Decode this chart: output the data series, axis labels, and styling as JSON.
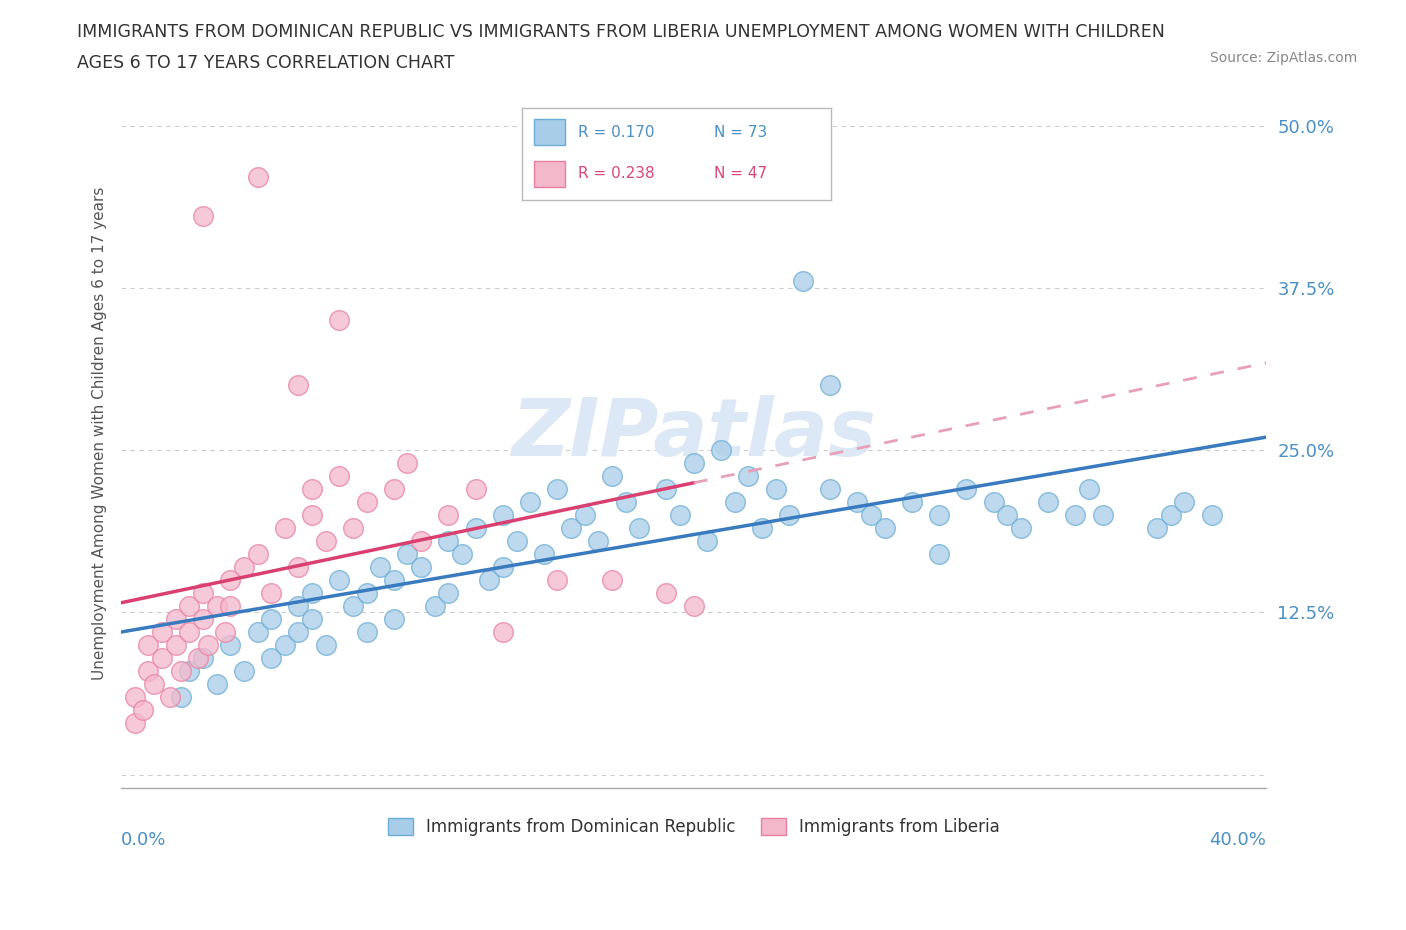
{
  "title_line1": "IMMIGRANTS FROM DOMINICAN REPUBLIC VS IMMIGRANTS FROM LIBERIA UNEMPLOYMENT AMONG WOMEN WITH CHILDREN",
  "title_line2": "AGES 6 TO 17 YEARS CORRELATION CHART",
  "source": "Source: ZipAtlas.com",
  "ylabel": "Unemployment Among Women with Children Ages 6 to 17 years",
  "xlim": [
    0.0,
    0.42
  ],
  "ylim": [
    -0.01,
    0.535
  ],
  "ytick_vals": [
    0.0,
    0.125,
    0.25,
    0.375,
    0.5
  ],
  "ytick_labels": [
    "",
    "12.5%",
    "25.0%",
    "37.5%",
    "50.0%"
  ],
  "color_blue": "#a8cde8",
  "color_pink": "#f4b8cb",
  "color_blue_edge": "#6aadd5",
  "color_pink_edge": "#e87fa0",
  "color_blue_text": "#4a90c4",
  "color_pink_text": "#d9477a",
  "color_trendline_blue": "#3a7abf",
  "color_trendline_pink": "#d94070",
  "color_trendline_pink_dash": "#e8a0b8",
  "watermark_color": "#dce8f5",
  "background_color": "#ffffff",
  "grid_color": "#cccccc",
  "blue_x": [
    0.022,
    0.025,
    0.03,
    0.035,
    0.04,
    0.045,
    0.05,
    0.055,
    0.055,
    0.06,
    0.065,
    0.065,
    0.07,
    0.07,
    0.075,
    0.08,
    0.085,
    0.09,
    0.09,
    0.095,
    0.1,
    0.1,
    0.105,
    0.11,
    0.115,
    0.12,
    0.12,
    0.125,
    0.13,
    0.135,
    0.14,
    0.14,
    0.145,
    0.15,
    0.155,
    0.16,
    0.165,
    0.17,
    0.175,
    0.18,
    0.185,
    0.19,
    0.2,
    0.205,
    0.21,
    0.215,
    0.22,
    0.225,
    0.23,
    0.235,
    0.24,
    0.245,
    0.25,
    0.26,
    0.27,
    0.275,
    0.28,
    0.29,
    0.3,
    0.31,
    0.32,
    0.325,
    0.33,
    0.34,
    0.35,
    0.355,
    0.36,
    0.38,
    0.385,
    0.39,
    0.26,
    0.3,
    0.4
  ],
  "blue_y": [
    0.06,
    0.08,
    0.09,
    0.07,
    0.1,
    0.08,
    0.11,
    0.09,
    0.12,
    0.1,
    0.13,
    0.11,
    0.14,
    0.12,
    0.1,
    0.15,
    0.13,
    0.14,
    0.11,
    0.16,
    0.15,
    0.12,
    0.17,
    0.16,
    0.13,
    0.18,
    0.14,
    0.17,
    0.19,
    0.15,
    0.2,
    0.16,
    0.18,
    0.21,
    0.17,
    0.22,
    0.19,
    0.2,
    0.18,
    0.23,
    0.21,
    0.19,
    0.22,
    0.2,
    0.24,
    0.18,
    0.25,
    0.21,
    0.23,
    0.19,
    0.22,
    0.2,
    0.38,
    0.22,
    0.21,
    0.2,
    0.19,
    0.21,
    0.2,
    0.22,
    0.21,
    0.2,
    0.19,
    0.21,
    0.2,
    0.22,
    0.2,
    0.19,
    0.2,
    0.21,
    0.3,
    0.17,
    0.2
  ],
  "pink_x": [
    0.005,
    0.005,
    0.008,
    0.01,
    0.01,
    0.012,
    0.015,
    0.015,
    0.018,
    0.02,
    0.02,
    0.022,
    0.025,
    0.025,
    0.028,
    0.03,
    0.03,
    0.032,
    0.035,
    0.038,
    0.04,
    0.04,
    0.045,
    0.05,
    0.055,
    0.06,
    0.065,
    0.07,
    0.07,
    0.075,
    0.08,
    0.085,
    0.09,
    0.1,
    0.105,
    0.11,
    0.12,
    0.13,
    0.14,
    0.16,
    0.18,
    0.2,
    0.21,
    0.03,
    0.05,
    0.065,
    0.08
  ],
  "pink_y": [
    0.04,
    0.06,
    0.05,
    0.08,
    0.1,
    0.07,
    0.09,
    0.11,
    0.06,
    0.1,
    0.12,
    0.08,
    0.11,
    0.13,
    0.09,
    0.12,
    0.14,
    0.1,
    0.13,
    0.11,
    0.15,
    0.13,
    0.16,
    0.17,
    0.14,
    0.19,
    0.16,
    0.2,
    0.22,
    0.18,
    0.23,
    0.19,
    0.21,
    0.22,
    0.24,
    0.18,
    0.2,
    0.22,
    0.11,
    0.15,
    0.15,
    0.14,
    0.13,
    0.43,
    0.46,
    0.3,
    0.35
  ]
}
